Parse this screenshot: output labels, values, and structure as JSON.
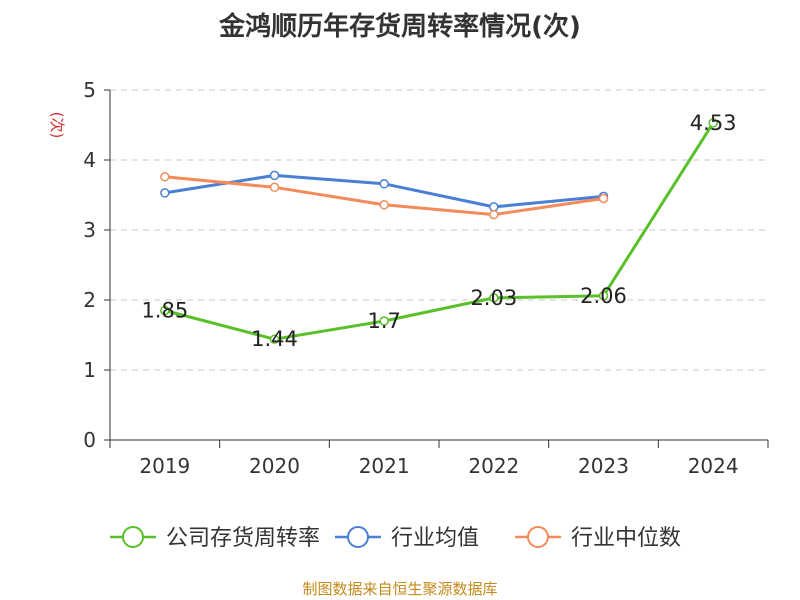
{
  "chart_data": {
    "type": "line",
    "title": "金鸿顺历年存货周转率情况(次)",
    "ylabel": "(次)",
    "categories": [
      "2019",
      "2020",
      "2021",
      "2022",
      "2023",
      "2024"
    ],
    "ylim": [
      0,
      5
    ],
    "yticks": [
      0,
      1,
      2,
      3,
      4,
      5
    ],
    "grid": true,
    "legend_position": "bottom",
    "series": [
      {
        "name": "公司存货周转率",
        "color": "#5ac02a",
        "values": [
          1.85,
          1.44,
          1.7,
          2.03,
          2.06,
          4.53
        ],
        "labels": [
          "1.85",
          "1.44",
          "1.7",
          "2.03",
          "2.06",
          "4.53"
        ]
      },
      {
        "name": "行业均值",
        "color": "#4a7fd6",
        "values": [
          3.53,
          3.78,
          3.66,
          3.33,
          3.48,
          null
        ]
      },
      {
        "name": "行业中位数",
        "color": "#f58a5a",
        "values": [
          3.76,
          3.61,
          3.36,
          3.22,
          3.45,
          null
        ]
      }
    ],
    "source": "制图数据来自恒生聚源数据库"
  }
}
